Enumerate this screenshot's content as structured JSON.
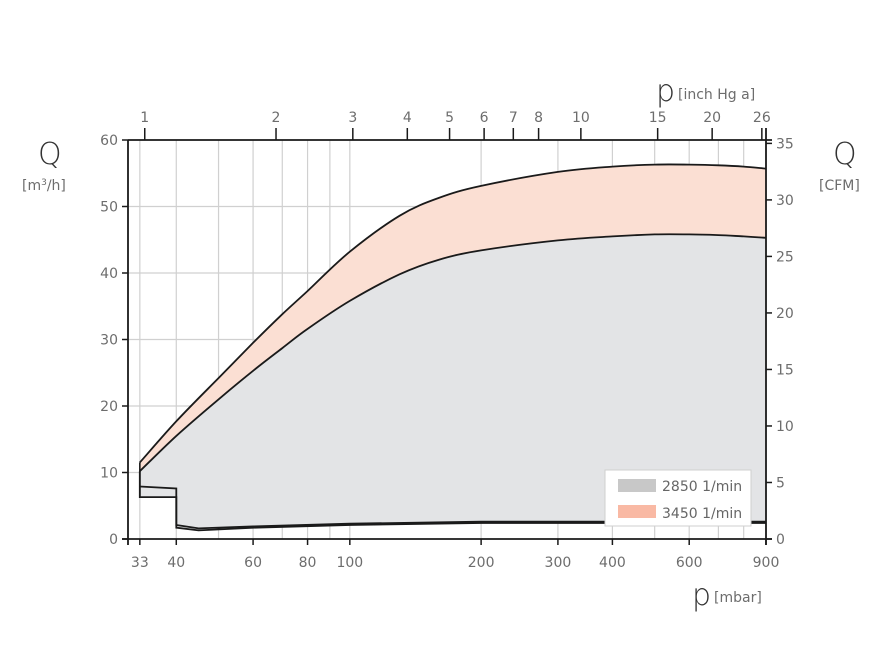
{
  "chart_data": {
    "type": "area",
    "x_axis_bottom": {
      "symbol": "p",
      "unit": "[mbar]",
      "scale": "log",
      "range": [
        31,
        900
      ],
      "ticks": [
        33,
        40,
        60,
        80,
        100,
        200,
        300,
        400,
        600,
        900
      ],
      "tick_labels": [
        "33",
        "40",
        "60",
        "80",
        "100",
        "200",
        "300",
        "400",
        "600",
        "900"
      ],
      "minor_gridlines": [
        50,
        70,
        90,
        500,
        700,
        800
      ]
    },
    "x_axis_top": {
      "symbol": "p",
      "unit": "[inch Hg a]",
      "scale": "log",
      "ticks": [
        1,
        2,
        3,
        4,
        5,
        6,
        7,
        8,
        10,
        15,
        20,
        26
      ],
      "tick_labels": [
        "1",
        "2",
        "3",
        "4",
        "5",
        "6",
        "7",
        "8",
        "10",
        "15",
        "20",
        "26"
      ]
    },
    "y_axis_left": {
      "symbol": "Q",
      "unit_prefix": "[m",
      "unit_sup": "3",
      "unit_suffix": "/h]",
      "range": [
        0,
        60
      ],
      "ticks": [
        0,
        10,
        20,
        30,
        40,
        50,
        60
      ],
      "tick_labels": [
        "0",
        "10",
        "20",
        "30",
        "40",
        "50",
        "60"
      ]
    },
    "y_axis_right": {
      "symbol": "Q",
      "unit": "[CFM]",
      "range": [
        0,
        35.3
      ],
      "ticks": [
        0,
        5,
        10,
        15,
        20,
        25,
        30,
        35
      ],
      "tick_labels": [
        "0",
        "5",
        "10",
        "15",
        "20",
        "25",
        "30",
        "35"
      ]
    },
    "grid": true,
    "legend_position": "bottom-right",
    "series": [
      {
        "name": "2850 1/min",
        "color": "#c8c8c8",
        "fill": "#e3e4e6",
        "upper": {
          "x": [
            33,
            40,
            50,
            60,
            70,
            80,
            100,
            130,
            160,
            200,
            300,
            400,
            500,
            600,
            700,
            800,
            900
          ],
          "y": [
            10.2,
            15.5,
            21.0,
            25.3,
            28.7,
            31.6,
            35.8,
            39.8,
            42.0,
            43.4,
            44.9,
            45.5,
            45.8,
            45.8,
            45.7,
            45.5,
            45.3
          ]
        },
        "lower": {
          "x": [
            33,
            33,
            40,
            40,
            45,
            60,
            100,
            200,
            900
          ],
          "y": [
            10.2,
            6.3,
            6.3,
            1.7,
            1.3,
            1.7,
            2.1,
            2.4,
            2.4
          ]
        }
      },
      {
        "name": "3450 1/min",
        "color": "#f9b9a4",
        "fill": "#fbdfd3",
        "upper": {
          "x": [
            33,
            40,
            50,
            60,
            70,
            80,
            100,
            130,
            160,
            200,
            300,
            400,
            500,
            600,
            700,
            800,
            900
          ],
          "y": [
            11.5,
            17.7,
            24.2,
            29.5,
            33.8,
            37.3,
            43.2,
            48.6,
            51.3,
            53.1,
            55.2,
            56.0,
            56.3,
            56.3,
            56.2,
            56.0,
            55.7
          ]
        },
        "lower": {
          "x": [
            33,
            40,
            40,
            45,
            60,
            100,
            200,
            900
          ],
          "y": [
            7.9,
            7.6,
            2.1,
            1.6,
            1.9,
            2.3,
            2.6,
            2.6
          ]
        }
      }
    ]
  }
}
